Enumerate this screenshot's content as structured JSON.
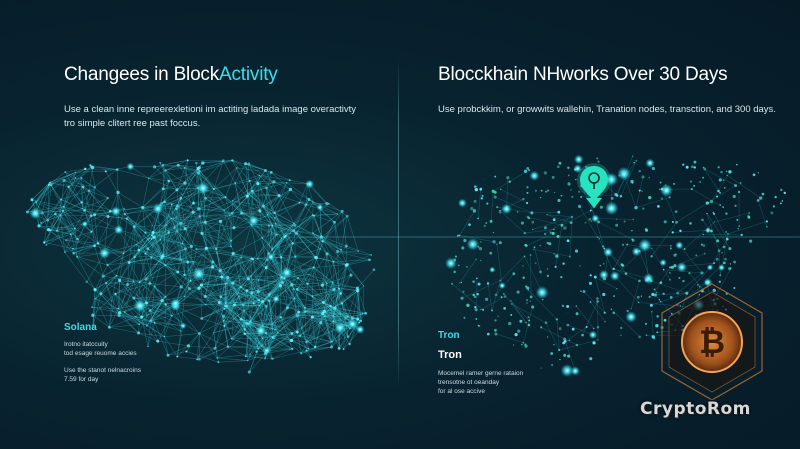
{
  "left": {
    "title_prefix": "Changees in Bl",
    "title_mid": "ock",
    "title_accent": "Activity",
    "description": [
      "Use a clean inne repreerexletioni im actiting ladada image overactivty",
      "tro simple clitert ree past foccus."
    ],
    "network_label": "Solana",
    "small_lines_1": [
      "Irotno  itatccuity",
      "tod esage reuome accies"
    ],
    "small_lines_2": [
      "Use the stanot nelnacroins",
      "7.59 for day"
    ]
  },
  "right": {
    "title": "Blocckhain NHworks Over 30 Days",
    "description": "Use probckkim, or growwits wallehin, Tranation nodes, transction, and 300 days.",
    "network_label_1": "Tron",
    "network_label_2": "Tron",
    "small_lines": [
      "Mocemel ramer gerne rataion",
      "trensotne ot oeanday",
      "for al ose accive"
    ]
  },
  "watermark": "CryptoRom",
  "icons": [
    "location-pin-icon",
    "bitcoin-coin-icon"
  ],
  "colors": {
    "accent": "#33e0ea",
    "node": "#5ff6ff",
    "coin": "#c9732a"
  }
}
